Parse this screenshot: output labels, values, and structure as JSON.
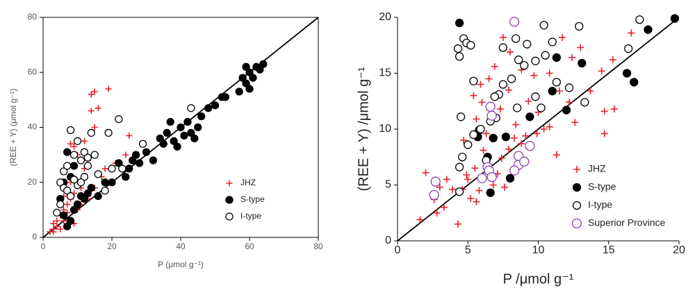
{
  "chart_data": [
    {
      "type": "scatter",
      "xlabel": "P (μmol g⁻¹)",
      "ylabel": "(REE + Y) (μmol g⁻¹)",
      "xlim": [
        0,
        80
      ],
      "ylim": [
        0,
        80
      ],
      "xticks": [
        0,
        20,
        40,
        60,
        80
      ],
      "yticks": [
        0,
        20,
        40,
        60,
        80
      ],
      "legend": "lower right",
      "series": [
        {
          "name": "JHZ",
          "color": "#e8202a",
          "marker": "plus",
          "x": [
            2,
            3,
            3,
            4,
            5,
            4,
            6,
            7,
            8,
            9,
            10,
            11,
            12,
            13,
            14,
            14,
            15,
            16,
            19,
            8,
            9,
            10,
            12,
            15,
            21,
            17,
            18,
            25,
            24,
            6,
            7,
            5,
            10,
            11,
            13,
            15,
            9,
            3,
            6,
            8
          ],
          "y": [
            2,
            3,
            5,
            6,
            8,
            4,
            10,
            12,
            14,
            16,
            20,
            18,
            25,
            28,
            46,
            52,
            53,
            47,
            54,
            34,
            33,
            30,
            35,
            40,
            27,
            22,
            25,
            37,
            30,
            6,
            9,
            3,
            10,
            12,
            14,
            18,
            5,
            2,
            15,
            20
          ]
        },
        {
          "name": "S-type",
          "color": "#000000",
          "marker": "filled",
          "x": [
            7,
            8,
            7,
            6,
            9,
            10,
            11,
            12,
            13,
            8,
            9,
            14,
            16,
            18,
            20,
            22,
            24,
            25,
            26,
            27,
            28,
            30,
            32,
            34,
            35,
            36,
            37,
            38,
            39,
            40,
            41,
            42,
            43,
            44,
            45,
            46,
            48,
            50,
            52,
            53,
            57,
            58,
            59,
            60,
            61,
            62,
            63,
            64,
            59,
            60,
            6,
            5
          ],
          "y": [
            31,
            6,
            4,
            8,
            10,
            12,
            15,
            14,
            16,
            22,
            26,
            18,
            15,
            20,
            20,
            27,
            22,
            25,
            28,
            30,
            27,
            31,
            28,
            36,
            34,
            38,
            42,
            35,
            33,
            40,
            37,
            42,
            38,
            36,
            40,
            44,
            47,
            48,
            51,
            51,
            53,
            58,
            56,
            60,
            58,
            62,
            61,
            63,
            62,
            54,
            20,
            14
          ]
        },
        {
          "name": "I-type",
          "color": "#000000",
          "marker": "open",
          "x": [
            5,
            6,
            7,
            8,
            9,
            10,
            11,
            12,
            13,
            14,
            15,
            19,
            22,
            23,
            20,
            29,
            43,
            6,
            7,
            8,
            10,
            12,
            16,
            18,
            5,
            9,
            11,
            4,
            13
          ],
          "y": [
            20,
            24,
            26,
            39,
            30,
            35,
            28,
            31,
            29,
            38,
            30,
            38,
            43,
            25,
            25,
            34,
            47,
            18,
            17,
            15,
            19,
            22,
            23,
            17,
            12,
            21,
            20,
            9,
            26
          ]
        }
      ]
    },
    {
      "type": "scatter",
      "xlabel": "P /μmol g⁻¹",
      "ylabel": "(REE + Y) /μmol g⁻¹",
      "xlim": [
        0,
        20
      ],
      "ylim": [
        0,
        20
      ],
      "xticks": [
        0,
        5,
        10,
        15,
        20
      ],
      "yticks": [
        0,
        5,
        10,
        15,
        20
      ],
      "legend": "lower right",
      "series": [
        {
          "name": "JHZ",
          "color": "#e8202a",
          "marker": "plus",
          "x": [
            1.6,
            2.6,
            3.0,
            3.3,
            3.5,
            4.3,
            4.6,
            5.2,
            5.5,
            5.0,
            5.8,
            6.1,
            4.7,
            5.6,
            6.0,
            5.4,
            5.9,
            6.5,
            6.9,
            7.5,
            8.0,
            8.8,
            9.7,
            10.8,
            11.7,
            12.4,
            13.0,
            14.5,
            15.3,
            16.6,
            14.7,
            15.4,
            14.7,
            13.7,
            12.6,
            11.3,
            10.8,
            10.0,
            9.1,
            8.8,
            8.3,
            7.9,
            7.4,
            7.1,
            6.8,
            7.6,
            8.4,
            9.3,
            9.9,
            10.4,
            11.5,
            12.2,
            7.3,
            5.6,
            3.9,
            2.0,
            2.8,
            7.9,
            6.3,
            4.9
          ],
          "y": [
            1.9,
            3.7,
            4.8,
            3.0,
            5.5,
            1.5,
            4.6,
            3.8,
            6.5,
            5.5,
            4.5,
            8.1,
            9.0,
            10.9,
            12.4,
            13.0,
            14.0,
            14.5,
            15.6,
            18.2,
            16.9,
            15.3,
            14.8,
            15.0,
            18.2,
            16.4,
            17.3,
            15.2,
            16.2,
            18.6,
            11.6,
            11.8,
            9.6,
            13.4,
            10.6,
            7.7,
            10.2,
            11.5,
            9.4,
            8.7,
            9.2,
            8.2,
            7.4,
            6.0,
            5.0,
            4.8,
            10.4,
            12.5,
            9.6,
            10.0,
            13.4,
            12.4,
            11.8,
            3.5,
            4.6,
            6.1,
            2.5,
            13.5,
            9.6,
            5.9
          ]
        },
        {
          "name": "S-type",
          "color": "#000000",
          "marker": "filled",
          "x": [
            4.4,
            19.7,
            17.8,
            11.3,
            13.1,
            16.3,
            16.8,
            11.0,
            12.0,
            9.4,
            6.8,
            7.7,
            5.7,
            5.8,
            6.4,
            6.6,
            8.0
          ],
          "y": [
            19.5,
            19.9,
            18.9,
            16.4,
            15.9,
            15.0,
            14.2,
            13.4,
            11.7,
            11.1,
            9.2,
            9.3,
            9.3,
            9.9,
            7.5,
            4.3,
            5.6
          ]
        },
        {
          "name": "I-type",
          "color": "#000000",
          "marker": "open",
          "x": [
            4.3,
            4.7,
            4.9,
            5.2,
            4.4,
            7.5,
            8.4,
            9.2,
            10.4,
            12.9,
            17.2,
            16.4,
            8.6,
            9.0,
            9.8,
            10.5,
            11.0,
            11.3,
            12.2,
            13.3,
            8.1,
            7.5,
            7.2,
            6.9,
            7.0,
            6.6,
            5.9,
            5.4,
            5.0,
            4.6,
            4.4,
            5.4,
            4.5,
            9.8,
            10.2,
            8.5,
            6.3,
            4.4
          ],
          "y": [
            17.2,
            18.1,
            17.7,
            17.5,
            16.5,
            17.3,
            18.1,
            17.6,
            19.3,
            19.2,
            19.8,
            17.2,
            16.2,
            15.7,
            16.1,
            16.6,
            17.8,
            14.2,
            13.7,
            12.4,
            14.5,
            14.0,
            13.1,
            12.9,
            11.0,
            10.7,
            10.0,
            9.5,
            8.6,
            7.5,
            4.4,
            14.3,
            11.1,
            12.9,
            11.9,
            11.9,
            7.2,
            6.6
          ]
        },
        {
          "name": "Superior Province",
          "color": "#8e3fb5",
          "marker": "open",
          "x": [
            8.3,
            6.6,
            6.7,
            2.7,
            2.6,
            6.4,
            6.5,
            6.0,
            6.7,
            8.6,
            8.6,
            8.3,
            9.4,
            9.0
          ],
          "y": [
            19.6,
            12.0,
            11.2,
            5.3,
            4.1,
            6.6,
            6.3,
            5.6,
            5.7,
            7.6,
            6.8,
            6.3,
            8.5,
            7.1
          ]
        }
      ]
    }
  ]
}
